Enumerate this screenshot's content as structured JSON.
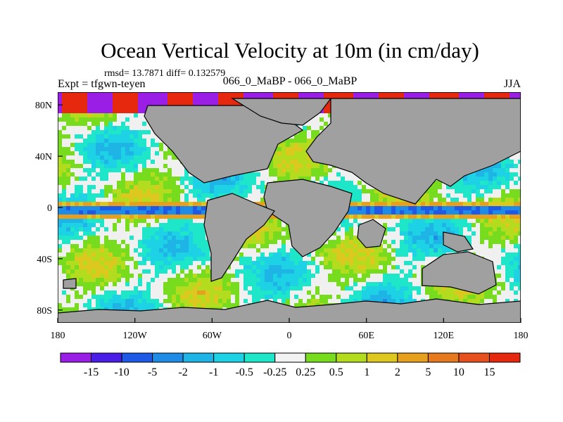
{
  "chart_data": {
    "type": "heatmap",
    "title": "Ocean Vertical Velocity at 10m (in cm/day)",
    "stats_text": "rmsd= 13.7871 diff= 0.132579",
    "left_label": "Expt = tfgwn-teyen",
    "center_label": "066_0_MaBP - 066_0_MaBP",
    "right_label": "JJA",
    "x_ticks": [
      "180",
      "120W",
      "60W",
      "0",
      "60E",
      "120E",
      "180"
    ],
    "y_ticks": [
      "80N",
      "40N",
      "0",
      "40S",
      "80S"
    ],
    "x_range": [
      -180,
      180
    ],
    "y_range": [
      -90,
      90
    ],
    "colorbar": {
      "labels": [
        "-15",
        "-10",
        "-5",
        "-2",
        "-1",
        "-0.5",
        "-0.25",
        "0.25",
        "0.5",
        "1",
        "2",
        "5",
        "10",
        "15"
      ],
      "colors": [
        "#9a1ee6",
        "#4a1ee6",
        "#1e5ae6",
        "#1e8ce6",
        "#1eb4e6",
        "#1ed2e6",
        "#1ee6c8",
        "#f2f2f2",
        "#78dc1e",
        "#b4dc1e",
        "#dcc81e",
        "#e6a01e",
        "#e6781e",
        "#e6501e",
        "#e6280e"
      ]
    },
    "land_color": "#a0a0a0"
  }
}
